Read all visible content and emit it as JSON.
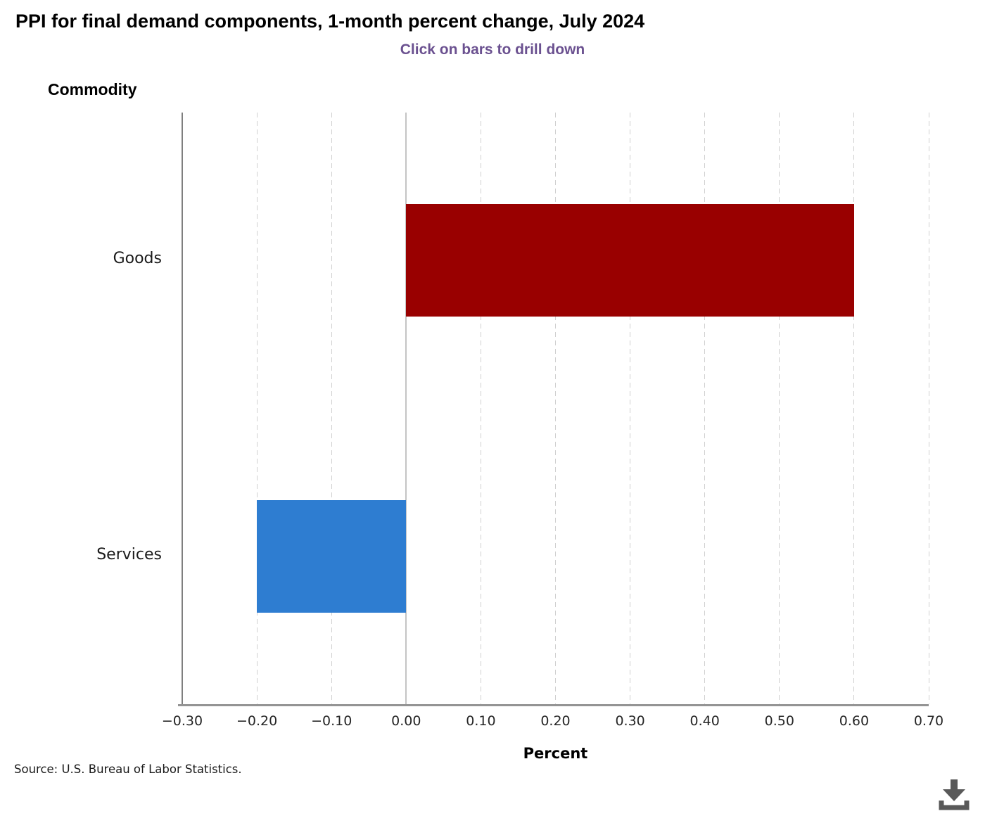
{
  "chart_data": {
    "type": "bar",
    "orientation": "horizontal",
    "title": "PPI for final demand components, 1-month percent change, July 2024",
    "subtitle": "Click on bars to drill down",
    "ylabel": "Commodity",
    "xlabel": "Percent",
    "categories": [
      "Goods",
      "Services"
    ],
    "values": [
      0.6,
      -0.2
    ],
    "bar_colors": [
      "#990000",
      "#2e7dd1"
    ],
    "xlim": [
      -0.3,
      0.7
    ],
    "xticks": [
      {
        "value": -0.3,
        "label": "−0.30"
      },
      {
        "value": -0.2,
        "label": "−0.20"
      },
      {
        "value": -0.1,
        "label": "−0.10"
      },
      {
        "value": 0.0,
        "label": "0.00"
      },
      {
        "value": 0.1,
        "label": "0.10"
      },
      {
        "value": 0.2,
        "label": "0.20"
      },
      {
        "value": 0.3,
        "label": "0.30"
      },
      {
        "value": 0.4,
        "label": "0.40"
      },
      {
        "value": 0.5,
        "label": "0.50"
      },
      {
        "value": 0.6,
        "label": "0.60"
      },
      {
        "value": 0.7,
        "label": "0.70"
      }
    ],
    "grid": {
      "vertical_gridlines": "dashed",
      "zero_line": "solid",
      "horizontal_gridlines": "none"
    },
    "legend": "none"
  },
  "footer": {
    "source": "Source: U.S. Bureau of Labor Statistics."
  },
  "icons": {
    "download": "download-icon"
  },
  "colors": {
    "subtitle_purple": "#6b5190",
    "goods_bar": "#990000",
    "services_bar": "#2e7dd1",
    "gridline": "#cfcfcf",
    "axis_line": "#7f7f7f",
    "download_icon": "#595959"
  }
}
